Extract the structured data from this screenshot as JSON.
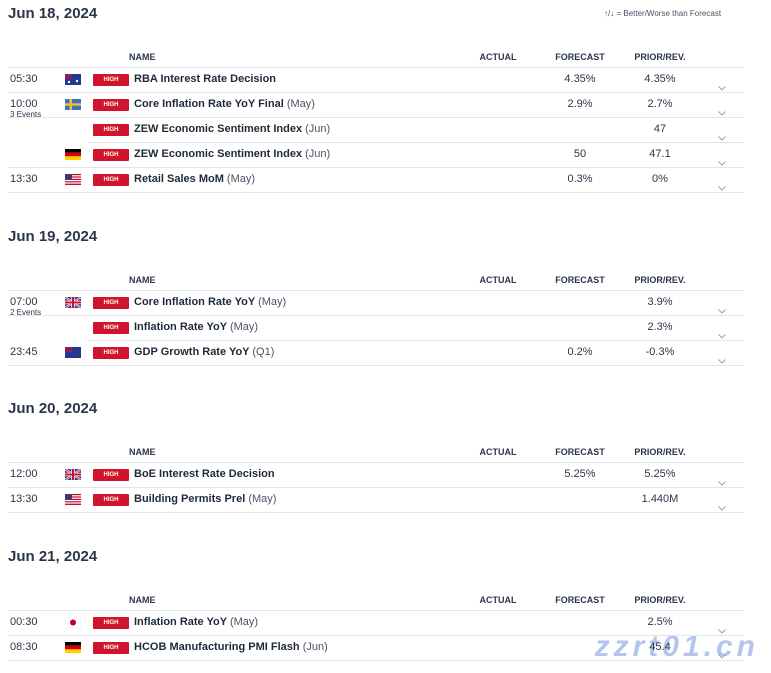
{
  "legend": "= Better/Worse than Forecast",
  "watermark": "zzrt01.cn",
  "columns": {
    "name": "NAME",
    "actual": "ACTUAL",
    "forecast": "FORECAST",
    "prior": "PRIOR/REV."
  },
  "days": [
    {
      "date": "Jun 18, 2024",
      "events": [
        {
          "time": "05:30",
          "impact": "HIGH",
          "name": "RBA Interest Rate Decision",
          "forecast": "4.35%",
          "prior": "4.35%"
        },
        {
          "time": "10:00",
          "count": "3 Events",
          "impact": "HIGH",
          "name": "Core Inflation Rate YoY Final",
          "period": "(May)",
          "forecast": "2.9%",
          "prior": "2.7%"
        },
        {
          "impact": "HIGH",
          "name": "ZEW Economic Sentiment Index",
          "period": "(Jun)",
          "prior": "47"
        },
        {
          "impact": "HIGH",
          "name": "ZEW Economic Sentiment Index",
          "period": "(Jun)",
          "forecast": "50",
          "prior": "47.1"
        },
        {
          "time": "13:30",
          "impact": "HIGH",
          "name": "Retail Sales MoM",
          "period": "(May)",
          "forecast": "0.3%",
          "prior": "0%"
        }
      ]
    },
    {
      "date": "Jun 19, 2024",
      "events": [
        {
          "time": "07:00",
          "count": "2 Events",
          "impact": "HIGH",
          "name": "Core Inflation Rate YoY",
          "period": "(May)",
          "prior": "3.9%"
        },
        {
          "impact": "HIGH",
          "name": "Inflation Rate YoY",
          "period": "(May)",
          "prior": "2.3%"
        },
        {
          "time": "23:45",
          "impact": "HIGH",
          "name": "GDP Growth Rate YoY",
          "period": "(Q1)",
          "forecast": "0.2%",
          "prior": "-0.3%"
        }
      ]
    },
    {
      "date": "Jun 20, 2024",
      "events": [
        {
          "time": "12:00",
          "impact": "HIGH",
          "name": "BoE Interest Rate Decision",
          "forecast": "5.25%",
          "prior": "5.25%"
        },
        {
          "time": "13:30",
          "impact": "HIGH",
          "name": "Building Permits Prel",
          "period": "(May)",
          "prior": "1.440M"
        }
      ]
    },
    {
      "date": "Jun 21, 2024",
      "events": [
        {
          "time": "00:30",
          "impact": "HIGH",
          "name": "Inflation Rate YoY",
          "period": "(May)",
          "prior": "2.5%"
        },
        {
          "time": "08:30",
          "impact": "HIGH",
          "name": "HCOB Manufacturing PMI Flash",
          "period": "(Jun)",
          "prior": "45.4"
        }
      ]
    }
  ]
}
